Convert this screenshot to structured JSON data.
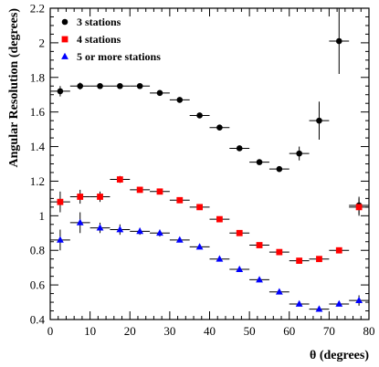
{
  "chart_data": {
    "type": "scatter",
    "title": "",
    "xlabel": "θ (degrees)",
    "ylabel": "Angular Resolution (degrees)",
    "xlim": [
      0,
      80
    ],
    "ylim": [
      0.4,
      2.2
    ],
    "x_ticks": [
      0,
      10,
      20,
      30,
      40,
      50,
      60,
      70,
      80
    ],
    "x_tick_labels": [
      "0",
      "10",
      "20",
      "30",
      "40",
      "50",
      "60",
      "70",
      "80"
    ],
    "y_ticks": [
      0.4,
      0.6,
      0.8,
      1.0,
      1.2,
      1.4,
      1.6,
      1.8,
      2.0,
      2.2
    ],
    "y_tick_labels": [
      "0.4",
      "0.6",
      "0.8",
      "1",
      "1.2",
      "1.4",
      "1.6",
      "1.8",
      "2",
      "2.2"
    ],
    "grid": false,
    "legend_position": "top-left",
    "series": [
      {
        "name": "3 stations",
        "marker": "circle",
        "color": "#000000",
        "x": [
          2.5,
          7.5,
          12.5,
          17.5,
          22.5,
          27.5,
          32.5,
          37.5,
          42.5,
          47.5,
          52.5,
          57.5,
          62.5,
          67.5,
          72.5,
          77.5
        ],
        "y": [
          1.72,
          1.75,
          1.75,
          1.75,
          1.75,
          1.71,
          1.67,
          1.58,
          1.51,
          1.39,
          1.31,
          1.27,
          1.36,
          1.55,
          2.01,
          1.06
        ],
        "yerr": [
          0.03,
          0.02,
          0.01,
          0.01,
          0.01,
          0.01,
          0.01,
          0.01,
          0.01,
          0.01,
          0.01,
          0.01,
          0.04,
          0.11,
          0.19,
          0.05
        ]
      },
      {
        "name": "4 stations",
        "marker": "square",
        "color": "#ff0000",
        "x": [
          2.5,
          7.5,
          12.5,
          17.5,
          22.5,
          27.5,
          32.5,
          37.5,
          42.5,
          47.5,
          52.5,
          57.5,
          62.5,
          67.5,
          72.5,
          77.5
        ],
        "y": [
          1.08,
          1.11,
          1.11,
          1.21,
          1.15,
          1.14,
          1.09,
          1.05,
          0.98,
          0.9,
          0.83,
          0.79,
          0.74,
          0.75,
          0.8,
          1.05
        ],
        "yerr": [
          0.06,
          0.04,
          0.03,
          0.02,
          0.01,
          0.01,
          0.01,
          0.01,
          0.01,
          0.01,
          0.01,
          0.01,
          0.01,
          0.01,
          0.01,
          0.05
        ]
      },
      {
        "name": "5 or more stations",
        "marker": "triangle",
        "color": "#0000ff",
        "x": [
          2.5,
          7.5,
          12.5,
          17.5,
          22.5,
          27.5,
          32.5,
          37.5,
          42.5,
          47.5,
          52.5,
          57.5,
          62.5,
          67.5,
          72.5,
          77.5
        ],
        "y": [
          0.86,
          0.96,
          0.93,
          0.92,
          0.91,
          0.9,
          0.86,
          0.82,
          0.75,
          0.69,
          0.63,
          0.56,
          0.49,
          0.46,
          0.49,
          0.51
        ],
        "yerr": [
          0.06,
          0.06,
          0.03,
          0.03,
          0.02,
          0.02,
          0.01,
          0.01,
          0.01,
          0.01,
          0.01,
          0.01,
          0.01,
          0.01,
          0.01,
          0.03
        ]
      }
    ]
  }
}
